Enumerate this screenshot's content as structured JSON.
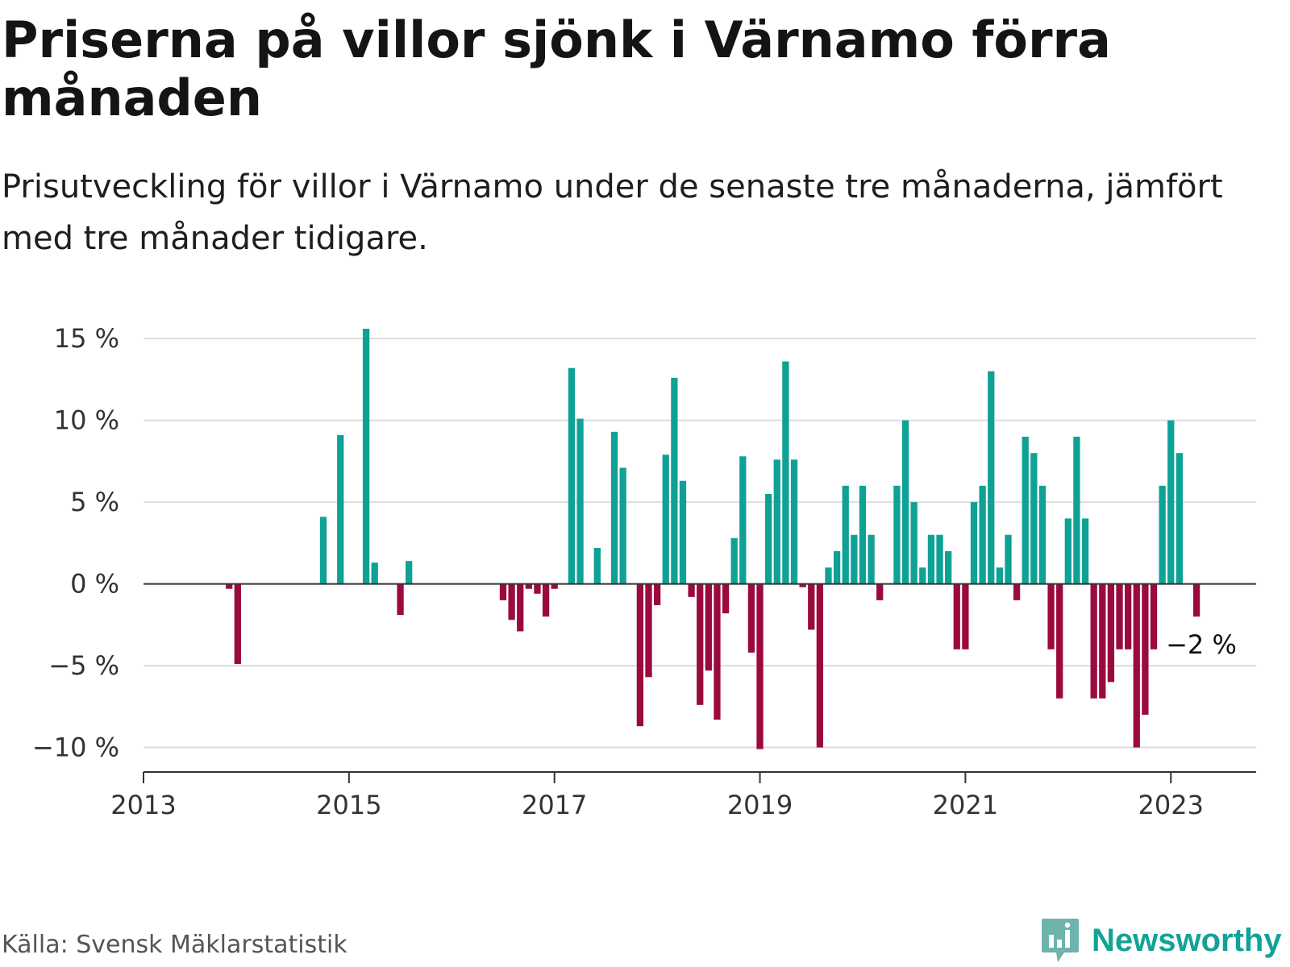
{
  "title": "Priserna på villor sjönk i Värnamo förra månaden",
  "subtitle": "Prisutveckling för villor i Värnamo under de senaste tre månaderna, jämfört med tre månader tidigare.",
  "source": "Källa: Svensk Mäklarstatistik",
  "brand": "Newsworthy",
  "colors": {
    "positive": "#0fa195",
    "negative": "#9b0a3f",
    "grid": "#dddddd",
    "axis": "#333333",
    "brand": "#12a397"
  },
  "chart_data": {
    "type": "bar",
    "x_unit": "month",
    "y_unit": "%",
    "ylim": [
      -11.5,
      15.5
    ],
    "yticks": [
      15,
      10,
      5,
      0,
      -5,
      -10
    ],
    "ytick_labels": [
      "15 %",
      "10 %",
      "5 %",
      "0 %",
      "−5 %",
      "−10 %"
    ],
    "xticks": [
      "2013-01",
      "2015-01",
      "2017-01",
      "2019-01",
      "2021-01",
      "2023-01"
    ],
    "xtick_labels": [
      "2013",
      "2015",
      "2017",
      "2019",
      "2021",
      "2023"
    ],
    "last_label": "−2 %",
    "grid": true,
    "points": [
      {
        "x": "2013-11",
        "y": -0.3
      },
      {
        "x": "2013-12",
        "y": -4.9
      },
      {
        "x": "2014-10",
        "y": 4.1
      },
      {
        "x": "2014-12",
        "y": 9.1
      },
      {
        "x": "2015-03",
        "y": 15.6
      },
      {
        "x": "2015-04",
        "y": 1.3
      },
      {
        "x": "2015-07",
        "y": -1.9
      },
      {
        "x": "2015-08",
        "y": 1.4
      },
      {
        "x": "2016-07",
        "y": -1.0
      },
      {
        "x": "2016-08",
        "y": -2.2
      },
      {
        "x": "2016-09",
        "y": -2.9
      },
      {
        "x": "2016-10",
        "y": -0.3
      },
      {
        "x": "2016-11",
        "y": -0.6
      },
      {
        "x": "2016-12",
        "y": -2.0
      },
      {
        "x": "2017-01",
        "y": -0.3
      },
      {
        "x": "2017-03",
        "y": 13.2
      },
      {
        "x": "2017-04",
        "y": 10.1
      },
      {
        "x": "2017-06",
        "y": 2.2
      },
      {
        "x": "2017-08",
        "y": 9.3
      },
      {
        "x": "2017-09",
        "y": 7.1
      },
      {
        "x": "2017-11",
        "y": -8.7
      },
      {
        "x": "2017-12",
        "y": -5.7
      },
      {
        "x": "2018-01",
        "y": -1.3
      },
      {
        "x": "2018-02",
        "y": 7.9
      },
      {
        "x": "2018-03",
        "y": 12.6
      },
      {
        "x": "2018-04",
        "y": 6.3
      },
      {
        "x": "2018-05",
        "y": -0.8
      },
      {
        "x": "2018-06",
        "y": -7.4
      },
      {
        "x": "2018-07",
        "y": -5.3
      },
      {
        "x": "2018-08",
        "y": -8.3
      },
      {
        "x": "2018-09",
        "y": -1.8
      },
      {
        "x": "2018-10",
        "y": 2.8
      },
      {
        "x": "2018-11",
        "y": 7.8
      },
      {
        "x": "2018-12",
        "y": -4.2
      },
      {
        "x": "2019-01",
        "y": -10.1
      },
      {
        "x": "2019-02",
        "y": 5.5
      },
      {
        "x": "2019-03",
        "y": 7.6
      },
      {
        "x": "2019-04",
        "y": 13.6
      },
      {
        "x": "2019-05",
        "y": 7.6
      },
      {
        "x": "2019-06",
        "y": -0.2
      },
      {
        "x": "2019-07",
        "y": -2.8
      },
      {
        "x": "2019-08",
        "y": -10.0
      },
      {
        "x": "2019-09",
        "y": 1.0
      },
      {
        "x": "2019-10",
        "y": 2.0
      },
      {
        "x": "2019-11",
        "y": 6.0
      },
      {
        "x": "2019-12",
        "y": 3.0
      },
      {
        "x": "2020-01",
        "y": 6.0
      },
      {
        "x": "2020-02",
        "y": 3.0
      },
      {
        "x": "2020-03",
        "y": -1.0
      },
      {
        "x": "2020-05",
        "y": 6.0
      },
      {
        "x": "2020-06",
        "y": 10.0
      },
      {
        "x": "2020-07",
        "y": 5.0
      },
      {
        "x": "2020-08",
        "y": 1.0
      },
      {
        "x": "2020-09",
        "y": 3.0
      },
      {
        "x": "2020-10",
        "y": 3.0
      },
      {
        "x": "2020-11",
        "y": 2.0
      },
      {
        "x": "2020-12",
        "y": -4.0
      },
      {
        "x": "2021-01",
        "y": -4.0
      },
      {
        "x": "2021-02",
        "y": 5.0
      },
      {
        "x": "2021-03",
        "y": 6.0
      },
      {
        "x": "2021-04",
        "y": 13.0
      },
      {
        "x": "2021-05",
        "y": 1.0
      },
      {
        "x": "2021-06",
        "y": 3.0
      },
      {
        "x": "2021-07",
        "y": -1.0
      },
      {
        "x": "2021-08",
        "y": 9.0
      },
      {
        "x": "2021-09",
        "y": 8.0
      },
      {
        "x": "2021-10",
        "y": 6.0
      },
      {
        "x": "2021-11",
        "y": -4.0
      },
      {
        "x": "2021-12",
        "y": -7.0
      },
      {
        "x": "2022-01",
        "y": 4.0
      },
      {
        "x": "2022-02",
        "y": 9.0
      },
      {
        "x": "2022-03",
        "y": 4.0
      },
      {
        "x": "2022-04",
        "y": -7.0
      },
      {
        "x": "2022-05",
        "y": -7.0
      },
      {
        "x": "2022-06",
        "y": -6.0
      },
      {
        "x": "2022-07",
        "y": -4.0
      },
      {
        "x": "2022-08",
        "y": -4.0
      },
      {
        "x": "2022-09",
        "y": -10.0
      },
      {
        "x": "2022-10",
        "y": -8.0
      },
      {
        "x": "2022-11",
        "y": -4.0
      },
      {
        "x": "2022-12",
        "y": 6.0
      },
      {
        "x": "2023-01",
        "y": 10.0
      },
      {
        "x": "2023-02",
        "y": 8.0
      },
      {
        "x": "2023-04",
        "y": -2.0
      }
    ]
  }
}
